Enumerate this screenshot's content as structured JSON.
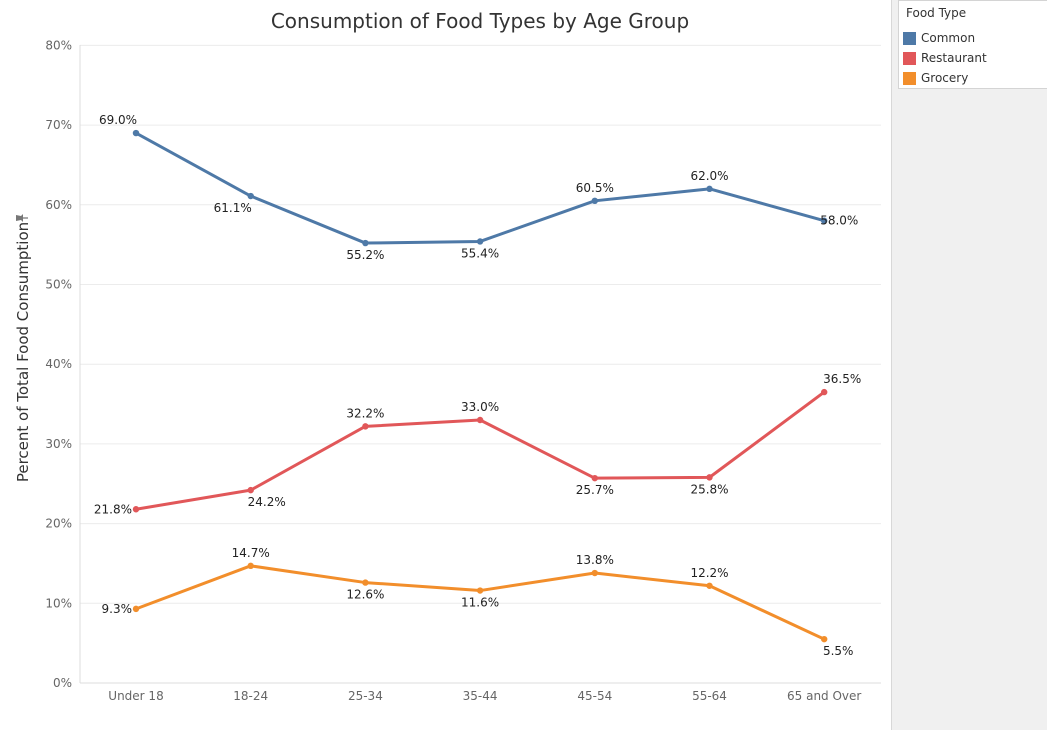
{
  "chart_data": {
    "type": "line",
    "title": "Consumption of Food Types by Age Group",
    "xlabel": "",
    "ylabel": "Percent of Total Food Consumption",
    "categories": [
      "Under 18",
      "18-24",
      "25-34",
      "35-44",
      "45-54",
      "55-64",
      "65 and Over"
    ],
    "y_ticks": [
      "0%",
      "10%",
      "20%",
      "30%",
      "40%",
      "50%",
      "60%",
      "70%",
      "80%"
    ],
    "ylim": [
      0,
      80
    ],
    "grid": true,
    "legend_position": "top-right",
    "legend_title": "Food Type",
    "series": [
      {
        "name": "Common",
        "color": "#4e79a7",
        "values": [
          69.0,
          61.1,
          55.2,
          55.4,
          60.5,
          62.0,
          58.0
        ],
        "labels": [
          "69.0%",
          "61.1%",
          "55.2%",
          "55.4%",
          "60.5%",
          "62.0%",
          "58.0%"
        ]
      },
      {
        "name": "Restaurant",
        "color": "#e15759",
        "values": [
          21.8,
          24.2,
          32.2,
          33.0,
          25.7,
          25.8,
          36.5
        ],
        "labels": [
          "21.8%",
          "24.2%",
          "32.2%",
          "33.0%",
          "25.7%",
          "25.8%",
          "36.5%"
        ]
      },
      {
        "name": "Grocery",
        "color": "#f28e2b",
        "values": [
          9.3,
          14.7,
          12.6,
          11.6,
          13.8,
          12.2,
          5.5
        ],
        "labels": [
          "9.3%",
          "14.7%",
          "12.6%",
          "11.6%",
          "13.8%",
          "12.2%",
          "5.5%"
        ]
      }
    ]
  }
}
